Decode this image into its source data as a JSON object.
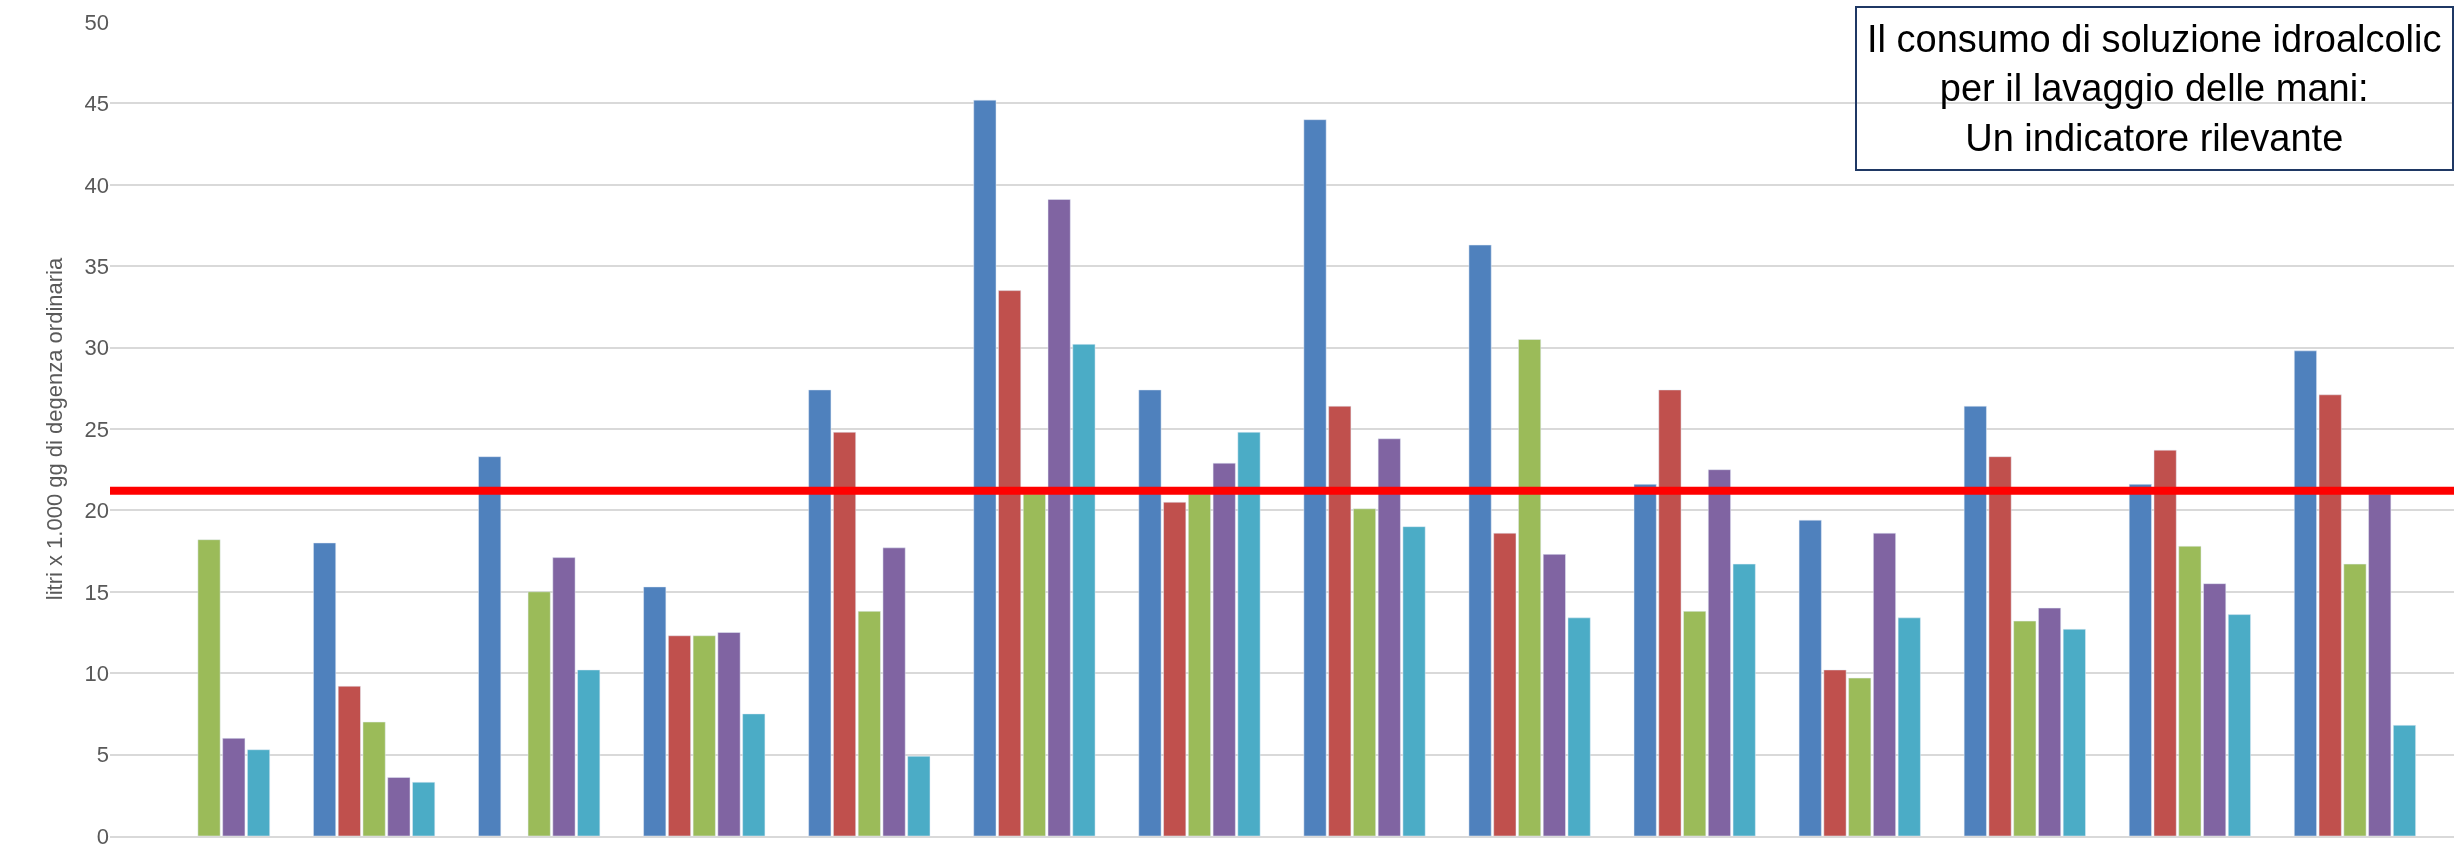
{
  "chart_data": {
    "type": "bar",
    "title": "Il consumo di soluzione idroalcolic\nper il lavaggio delle mani:\nUn indicatore rilevante",
    "ylabel": "litri x 1.000 gg di degenza ordinaria",
    "categories": [
      null,
      null,
      null,
      null,
      null,
      null,
      null,
      null,
      null,
      null,
      null,
      null,
      null,
      null
    ],
    "series": [
      {
        "color": "#4f81bd",
        "values": [
          null,
          18.0,
          23.3,
          15.3,
          27.4,
          45.2,
          27.4,
          44.0,
          36.3,
          21.6,
          19.4,
          26.4,
          21.6,
          29.8
        ]
      },
      {
        "color": "#c0504d",
        "values": [
          null,
          9.2,
          null,
          12.3,
          24.8,
          33.5,
          20.5,
          26.4,
          18.6,
          27.4,
          10.2,
          23.3,
          23.7,
          27.1
        ]
      },
      {
        "color": "#9bbb59",
        "values": [
          18.2,
          7.0,
          15.0,
          12.3,
          13.8,
          21.0,
          21.0,
          20.1,
          30.5,
          13.8,
          9.7,
          13.2,
          17.8,
          16.7
        ]
      },
      {
        "color": "#8064a2",
        "values": [
          6.0,
          3.6,
          17.1,
          12.5,
          17.7,
          39.1,
          22.9,
          24.4,
          17.3,
          22.5,
          18.6,
          14.0,
          15.5,
          21.0
        ]
      },
      {
        "color": "#4bacc6",
        "values": [
          5.3,
          3.3,
          10.2,
          7.5,
          4.9,
          30.2,
          24.8,
          19.0,
          13.4,
          16.7,
          13.4,
          12.7,
          13.6,
          6.8
        ]
      }
    ],
    "ylim": [
      0,
      50
    ],
    "yticks": [
      0,
      5,
      10,
      15,
      20,
      25,
      30,
      35,
      40,
      45,
      50
    ],
    "grid": "y",
    "ref_lines": [
      {
        "axis": "y",
        "value": 21.2,
        "color": "#ff0000"
      }
    ]
  }
}
